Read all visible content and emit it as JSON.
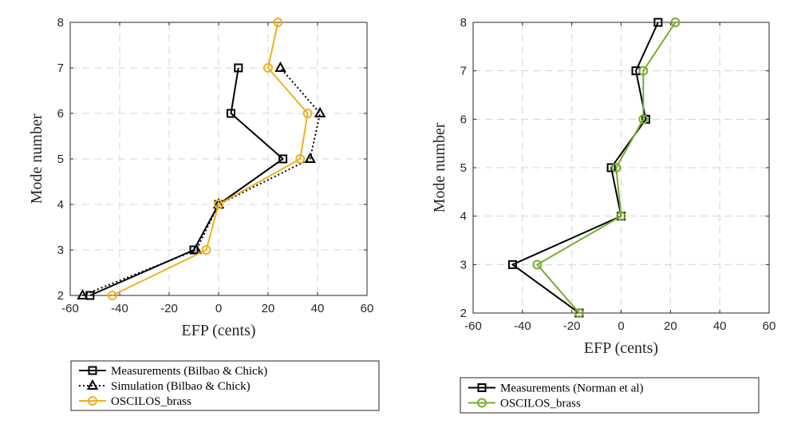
{
  "chart_data": [
    {
      "type": "line",
      "title": "",
      "xlabel": "EFP (cents)",
      "ylabel": "Mode number",
      "xlim": [
        -60,
        60
      ],
      "ylim": [
        2,
        8
      ],
      "xticks": [
        -60,
        -40,
        -20,
        0,
        20,
        40,
        60
      ],
      "yticks": [
        2,
        3,
        4,
        5,
        6,
        7,
        8
      ],
      "grid": true,
      "legend_position": "below",
      "series": [
        {
          "name": "Measurements (Bilbao & Chick)",
          "color": "#000000",
          "line": "solid",
          "marker": "square",
          "x": [
            -52,
            -10,
            0,
            26,
            5,
            8
          ],
          "y": [
            2,
            3,
            4,
            5,
            6,
            7
          ]
        },
        {
          "name": "Simulation (Bilbao & Chick)",
          "color": "#000000",
          "line": "dotted",
          "marker": "triangle",
          "x": [
            -55,
            -9,
            0,
            37,
            41,
            25
          ],
          "y": [
            2,
            3,
            4,
            5,
            6,
            7
          ]
        },
        {
          "name": "OSCILOS_brass",
          "color": "#EDB120",
          "line": "solid",
          "marker": "circle",
          "x": [
            -43,
            -5,
            0,
            33,
            36,
            20,
            24
          ],
          "y": [
            2,
            3,
            4,
            5,
            6,
            7,
            8
          ]
        }
      ]
    },
    {
      "type": "line",
      "title": "",
      "xlabel": "EFP (cents)",
      "ylabel": "Mode number",
      "xlim": [
        -60,
        60
      ],
      "ylim": [
        2,
        8
      ],
      "xticks": [
        -60,
        -40,
        -20,
        0,
        20,
        40,
        60
      ],
      "yticks": [
        2,
        3,
        4,
        5,
        6,
        7,
        8
      ],
      "grid": true,
      "legend_position": "below",
      "series": [
        {
          "name": "Measurements (Norman et al)",
          "color": "#000000",
          "line": "solid",
          "marker": "square",
          "x": [
            -17,
            -44,
            0,
            -4,
            10,
            6,
            15
          ],
          "y": [
            2,
            3,
            4,
            5,
            6,
            7,
            8
          ]
        },
        {
          "name": "OSCILOS_brass",
          "color": "#77AC30",
          "line": "solid",
          "marker": "circle",
          "x": [
            -17,
            -34,
            0,
            -2,
            9,
            9,
            22
          ],
          "y": [
            2,
            3,
            4,
            5,
            6,
            7,
            8
          ]
        }
      ]
    }
  ]
}
